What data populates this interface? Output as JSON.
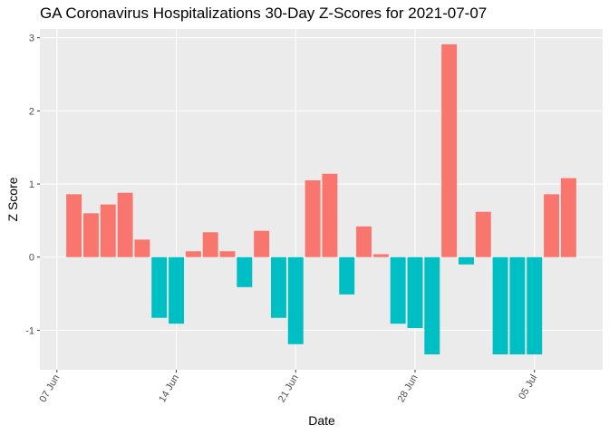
{
  "chart_data": {
    "type": "bar",
    "title": "GA Coronavirus Hospitalizations 30-Day Z-Scores for 2021-07-07",
    "x_label": "Date",
    "y_label": "Z Score",
    "x": [
      "08 Jun",
      "09 Jun",
      "10 Jun",
      "11 Jun",
      "12 Jun",
      "13 Jun",
      "14 Jun",
      "15 Jun",
      "16 Jun",
      "17 Jun",
      "18 Jun",
      "19 Jun",
      "20 Jun",
      "21 Jun",
      "22 Jun",
      "23 Jun",
      "24 Jun",
      "25 Jun",
      "26 Jun",
      "27 Jun",
      "28 Jun",
      "29 Jun",
      "30 Jun",
      "01 Jul",
      "02 Jul",
      "03 Jul",
      "04 Jul",
      "05 Jul",
      "06 Jul",
      "07 Jul"
    ],
    "values": [
      0.86,
      0.6,
      0.72,
      0.88,
      0.24,
      -0.83,
      -0.91,
      0.08,
      0.34,
      0.08,
      -0.41,
      0.36,
      -0.83,
      -1.19,
      1.05,
      1.14,
      -0.51,
      0.42,
      0.04,
      -0.91,
      -0.97,
      -1.33,
      2.91,
      -0.1,
      0.62,
      -1.33,
      -1.33,
      -1.33,
      0.86,
      1.08
    ],
    "colors": {
      "positive": "#F8766D",
      "negative": "#00BFC4"
    },
    "xlim": [
      "06 Jun",
      "09 Jul"
    ],
    "xticks": [
      "07 Jun",
      "14 Jun",
      "21 Jun",
      "28 Jun",
      "05 Jul"
    ],
    "ylim": [
      -1.54,
      3.12
    ],
    "yticks": [
      -1,
      0,
      1,
      2,
      3
    ],
    "grid": true
  }
}
